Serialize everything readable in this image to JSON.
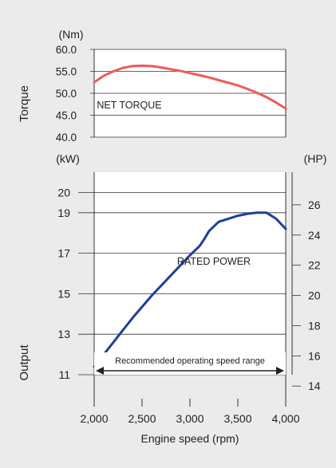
{
  "chart_data": [
    {
      "type": "line",
      "panel": "torque",
      "ylabel": "Torque",
      "yunit": "(Nm)",
      "ylim": [
        40,
        60
      ],
      "yticks": [
        40,
        45,
        50,
        55,
        60
      ],
      "ytick_labels": [
        "40.0",
        "45.0",
        "50.0",
        "55.0",
        "60.0"
      ],
      "xlim": [
        2000,
        4000
      ],
      "series": [
        {
          "name": "NET TORQUE",
          "color": "#f05a5a",
          "x": [
            2000,
            2100,
            2200,
            2300,
            2400,
            2500,
            2600,
            2700,
            2800,
            2900,
            3000,
            3100,
            3200,
            3300,
            3400,
            3500,
            3600,
            3700,
            3800,
            3900,
            4000
          ],
          "y": [
            52.5,
            54.0,
            55.0,
            55.8,
            56.2,
            56.3,
            56.2,
            55.9,
            55.5,
            55.1,
            54.6,
            54.1,
            53.6,
            53.0,
            52.4,
            51.8,
            51.0,
            50.1,
            49.1,
            47.9,
            46.5
          ]
        }
      ],
      "annotations": [
        "NET TORQUE"
      ]
    },
    {
      "type": "line",
      "panel": "output",
      "ylabel": "Output",
      "yunit": "(kW)",
      "ylim": [
        11,
        21
      ],
      "yticks": [
        11,
        13,
        15,
        17,
        19,
        20
      ],
      "y2unit": "(HP)",
      "y2lim": [
        14.75,
        28.16
      ],
      "y2ticks": [
        14,
        16,
        18,
        20,
        22,
        24,
        26
      ],
      "xlabel": "Engine speed (rpm)",
      "xlim": [
        2000,
        4000
      ],
      "xticks": [
        2000,
        2500,
        3000,
        3500,
        4000
      ],
      "xtick_labels": [
        "2,000",
        "2,500",
        "3,000",
        "3,500",
        "4,000"
      ],
      "series": [
        {
          "name": "RATED POWER",
          "color": "#1f3f97",
          "x": [
            2000,
            2100,
            2200,
            2300,
            2400,
            2500,
            2600,
            2700,
            2800,
            2900,
            3000,
            3100,
            3150,
            3200,
            3300,
            3400,
            3500,
            3600,
            3700,
            3800,
            3900,
            4000
          ],
          "y": [
            11.4,
            12.0,
            12.6,
            13.2,
            13.8,
            14.35,
            14.9,
            15.4,
            15.9,
            16.4,
            16.9,
            17.35,
            17.7,
            18.1,
            18.55,
            18.7,
            18.85,
            18.95,
            19.0,
            19.0,
            18.7,
            18.2
          ]
        }
      ],
      "annotations": [
        "RATED POWER"
      ]
    }
  ],
  "operating_range": {
    "label": "Recommended operating speed range",
    "x_start": 2000,
    "x_end": 4000
  },
  "colors": {
    "background": "#ebebeb",
    "plot_background": "#ffffff",
    "torque_line": "#f05a5a",
    "power_line": "#1f3f97",
    "grid": "#333333"
  }
}
